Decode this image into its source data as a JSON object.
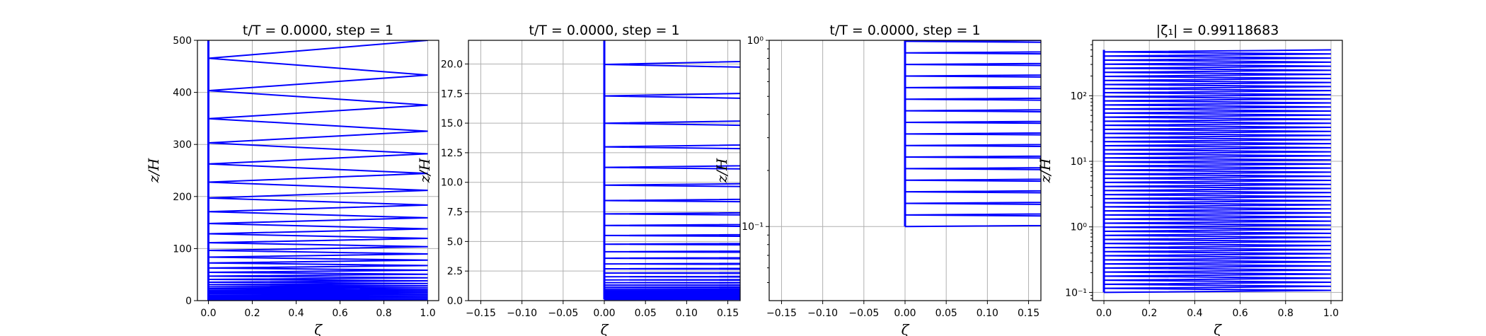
{
  "figure": {
    "background": "#ffffff",
    "line_color": "#0000ff",
    "grid_color": "#b0b0b0"
  },
  "chart_data": [
    {
      "type": "line",
      "title": "t/T = 0.0000, step = 1",
      "xlabel": "ζ",
      "ylabel": "z/H",
      "xlim": [
        -0.05,
        1.05
      ],
      "ylim": [
        0,
        500
      ],
      "yscale": "linear",
      "grid": true,
      "x_ticks": [
        0.0,
        0.2,
        0.4,
        0.6,
        0.8,
        1.0
      ],
      "x_tick_labels": [
        "0.0",
        "0.2",
        "0.4",
        "0.6",
        "0.8",
        "1.0"
      ],
      "y_ticks": [
        0,
        100,
        200,
        300,
        400,
        500
      ],
      "y_tick_labels": [
        "0",
        "100",
        "200",
        "300",
        "400",
        "500"
      ],
      "series_description": "zig-zag profile through many levels between ζ=0 and ζ=1",
      "z_levels": {
        "start": 0.1,
        "end": 500,
        "count": 120
      },
      "x_range": [
        0,
        1
      ]
    },
    {
      "type": "line",
      "title": "t/T = 0.0000, step = 1",
      "xlabel": "ζ",
      "ylabel": "z/H",
      "xlim": [
        -0.165,
        0.165
      ],
      "ylim": [
        0,
        22
      ],
      "yscale": "linear",
      "grid": true,
      "x_ticks": [
        -0.15,
        -0.1,
        -0.05,
        0.0,
        0.05,
        0.1,
        0.15
      ],
      "x_tick_labels": [
        "−0.15",
        "−0.10",
        "−0.05",
        "0.00",
        "0.05",
        "0.10",
        "0.15"
      ],
      "y_ticks": [
        0,
        2.5,
        5.0,
        7.5,
        10.0,
        12.5,
        15.0,
        17.5,
        20.0
      ],
      "y_tick_labels": [
        "0.0",
        "2.5",
        "5.0",
        "7.5",
        "10.0",
        "12.5",
        "15.0",
        "17.5",
        "20.0"
      ],
      "z_levels": {
        "start": 0.1,
        "end": 500,
        "count": 120
      },
      "x_range": [
        0,
        1
      ]
    },
    {
      "type": "line",
      "title": "t/T = 0.0000, step = 1",
      "xlabel": "ζ",
      "ylabel": "z/H",
      "xlim": [
        -0.165,
        0.165
      ],
      "ylim": [
        0.04,
        1.0
      ],
      "yscale": "log",
      "grid": true,
      "x_ticks": [
        -0.15,
        -0.1,
        -0.05,
        0.0,
        0.05,
        0.1,
        0.15
      ],
      "x_tick_labels": [
        "−0.15",
        "−0.10",
        "−0.05",
        "0.00",
        "0.05",
        "0.10",
        "0.15"
      ],
      "y_ticks": [
        0.1,
        1.0
      ],
      "y_tick_labels": [
        "10⁻¹",
        "10⁰"
      ],
      "z_levels": {
        "start": 0.1,
        "end": 500,
        "count": 120
      },
      "x_range": [
        0,
        1
      ]
    },
    {
      "type": "line",
      "title": "|ζ₁| = 0.99118683",
      "xlabel": "ζ",
      "ylabel": "z/H",
      "xlim": [
        -0.05,
        1.05
      ],
      "ylim": [
        0.075,
        700
      ],
      "yscale": "log",
      "grid": true,
      "x_ticks": [
        0.0,
        0.2,
        0.4,
        0.6,
        0.8,
        1.0
      ],
      "x_tick_labels": [
        "0.0",
        "0.2",
        "0.4",
        "0.6",
        "0.8",
        "1.0"
      ],
      "y_ticks": [
        0.1,
        1,
        10,
        100
      ],
      "y_tick_labels": [
        "10⁻¹",
        "10⁰",
        "10¹",
        "10²"
      ],
      "z_levels": {
        "start": 0.1,
        "end": 500,
        "count": 120
      },
      "x_range": [
        0,
        1
      ]
    }
  ]
}
